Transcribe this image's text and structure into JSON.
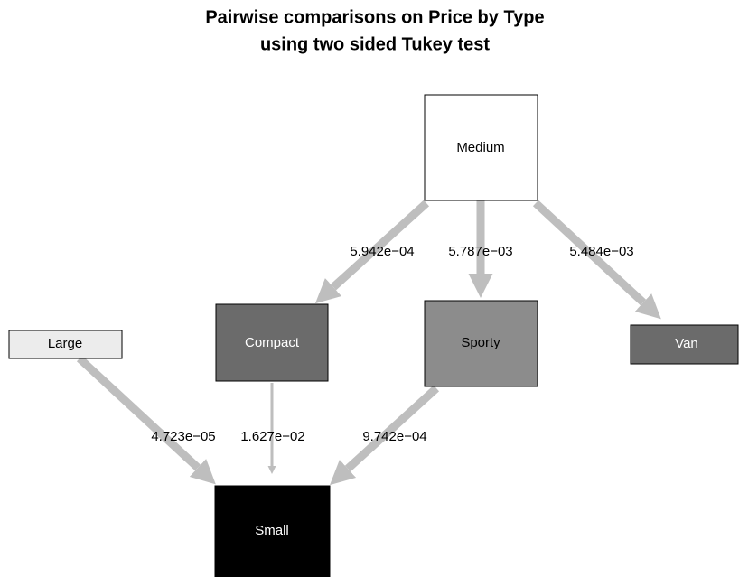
{
  "title": [
    "Pairwise comparisons on Price by Type",
    "using two sided Tukey test"
  ],
  "nodes": [
    {
      "label": "Medium"
    },
    {
      "label": "Compact"
    },
    {
      "label": "Sporty"
    },
    {
      "label": "Van"
    },
    {
      "label": "Large"
    },
    {
      "label": "Small"
    }
  ],
  "edges": [
    {
      "label": "5.942e−04"
    },
    {
      "label": "5.787e−03"
    },
    {
      "label": "5.484e−03"
    },
    {
      "label": "4.723e−05"
    },
    {
      "label": "1.627e−02"
    },
    {
      "label": "9.742e−04"
    }
  ]
}
